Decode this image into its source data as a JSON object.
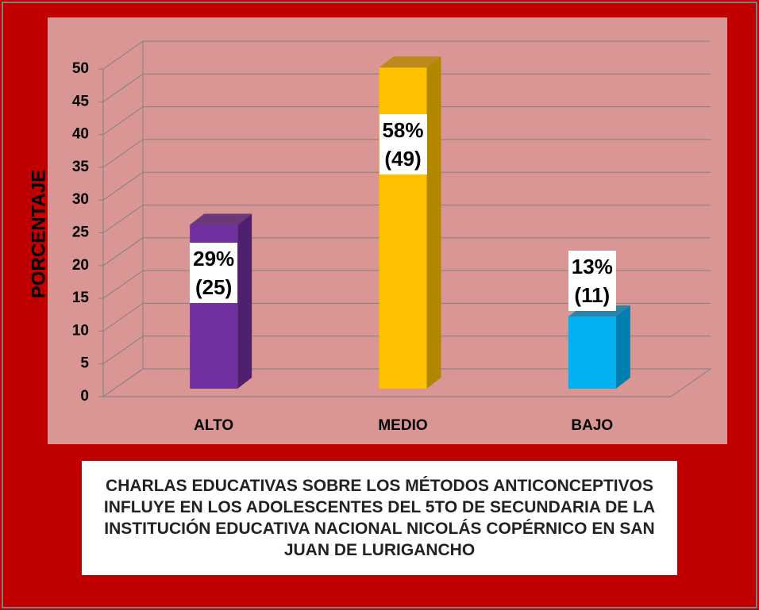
{
  "chart_data": {
    "type": "bar3d",
    "title": "CHARLAS EDUCATIVAS SOBRE LOS MÉTODOS  ANTICONCEPTIVOS INFLUYE EN LOS ADOLESCENTES DEL 5TO DE SECUNDARIA DE LA INSTITUCIÓN EDUCATIVA NACIONAL NICOLÁS COPÉRNICO EN SAN JUAN DE LURIGANCHO",
    "y_label": "PORCENTAJE",
    "categories": [
      "ALTO",
      "MEDIO",
      "BAJO"
    ],
    "values": [
      25,
      49,
      11
    ],
    "value_labels": [
      "29%\n(25)",
      "58%\n(49)",
      "13%\n(11)"
    ],
    "colors": [
      "#7030a0",
      "#ffc000",
      "#00b0f0"
    ],
    "side_colors": [
      "#4f2070",
      "#b38600",
      "#0080b0"
    ],
    "ylim": [
      0,
      50
    ],
    "yticks": [
      0,
      5,
      10,
      15,
      20,
      25,
      30,
      35,
      40,
      45,
      50
    ],
    "grid": true
  }
}
